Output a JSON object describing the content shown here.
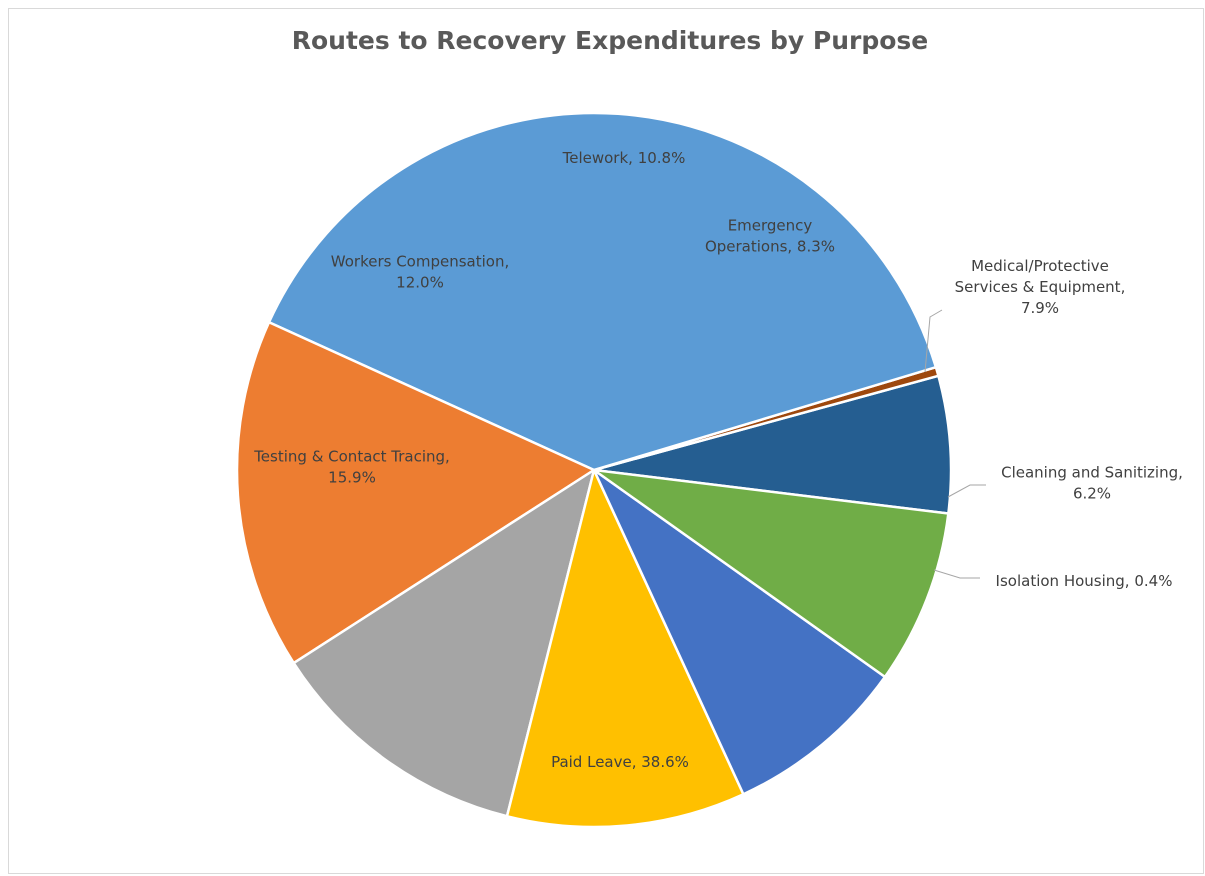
{
  "chart_data": {
    "type": "pie",
    "title": "Routes to Recovery Expenditures by Purpose",
    "slices": [
      {
        "name": "Cleaning and Sanitizing",
        "value": 6.2,
        "color": "#255E91",
        "label_lines": [
          "Cleaning and Sanitizing,",
          "6.2%"
        ]
      },
      {
        "name": "Isolation Housing",
        "value": 0.4,
        "color": "#9E480E",
        "label_lines": [
          "Isolation Housing, 0.4%"
        ]
      },
      {
        "name": "Paid Leave",
        "value": 38.6,
        "color": "#5B9BD5",
        "label_lines": [
          "Paid Leave, 38.6%"
        ]
      },
      {
        "name": "Testing & Contact Tracing",
        "value": 15.9,
        "color": "#ED7D31",
        "label_lines": [
          "Testing & Contact Tracing,",
          "15.9%"
        ]
      },
      {
        "name": "Workers Compensation",
        "value": 12.0,
        "color": "#A5A5A5",
        "label_lines": [
          "Workers Compensation,",
          "12.0%"
        ]
      },
      {
        "name": "Telework",
        "value": 10.8,
        "color": "#FFC000",
        "label_lines": [
          "Telework, 10.8%"
        ]
      },
      {
        "name": "Emergency Operations",
        "value": 8.3,
        "color": "#4472C4",
        "label_lines": [
          "Emergency",
          "Operations, 8.3%"
        ]
      },
      {
        "name": "Medical/Protective Services & Equipment",
        "value": 7.9,
        "color": "#70AD47",
        "label_lines": [
          "Medical/Protective",
          "Services & Equipment,",
          "7.9%"
        ]
      }
    ],
    "legend": "none",
    "data_labels": "category name and percentage"
  }
}
